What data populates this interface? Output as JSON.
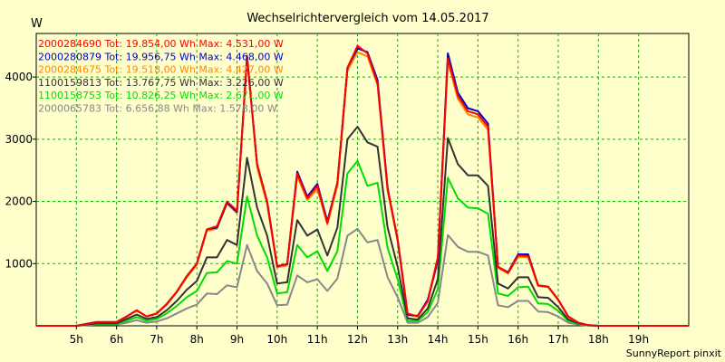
{
  "chart_data": {
    "type": "line",
    "title": "Wechselrichtervergleich vom 14.05.2017",
    "ylabel": "W",
    "ylim": [
      0,
      4700
    ],
    "xlim": [
      4.0,
      20.25
    ],
    "grid": true,
    "legend_placement": "top-left",
    "x_ticks": [
      5,
      6,
      7,
      8,
      9,
      10,
      11,
      12,
      13,
      14,
      15,
      16,
      17,
      18,
      19
    ],
    "x_tick_labels": [
      "5h",
      "6h",
      "7h",
      "8h",
      "9h",
      "10h",
      "11h",
      "12h",
      "13h",
      "14h",
      "15h",
      "16h",
      "17h",
      "18h",
      "19h"
    ],
    "y_ticks": [
      1000,
      2000,
      3000,
      4000
    ],
    "y_tick_labels": [
      "1000",
      "2000",
      "3000",
      "4000"
    ],
    "x": [
      4.0,
      4.5,
      5.0,
      5.25,
      5.5,
      5.75,
      6.0,
      6.25,
      6.5,
      6.75,
      7.0,
      7.25,
      7.5,
      7.75,
      8.0,
      8.25,
      8.5,
      8.75,
      9.0,
      9.25,
      9.5,
      9.75,
      10.0,
      10.25,
      10.5,
      10.75,
      11.0,
      11.25,
      11.5,
      11.75,
      12.0,
      12.25,
      12.5,
      12.75,
      13.0,
      13.25,
      13.5,
      13.75,
      14.0,
      14.25,
      14.5,
      14.75,
      15.0,
      15.25,
      15.5,
      15.75,
      16.0,
      16.25,
      16.5,
      16.75,
      17.0,
      17.25,
      17.5,
      17.75,
      18.0,
      18.25,
      18.5,
      18.75,
      19.0,
      19.5,
      20.25
    ],
    "series": [
      {
        "name": "2000284690",
        "legend": "2000284690 Tot: 19.854,00 Wh Max: 4.531,00 W",
        "color": "#ff0000",
        "values": [
          0,
          0,
          0,
          30,
          60,
          60,
          60,
          150,
          250,
          150,
          200,
          350,
          550,
          800,
          1000,
          1550,
          1600,
          2000,
          1850,
          4300,
          2600,
          2000,
          950,
          1000,
          2450,
          2050,
          2250,
          1650,
          2300,
          4150,
          4500,
          4380,
          3900,
          2200,
          1400,
          200,
          150,
          400,
          1100,
          4300,
          3700,
          3450,
          3400,
          3200,
          950,
          850,
          1130,
          1120,
          650,
          630,
          420,
          150,
          50,
          10,
          0,
          0,
          0,
          0,
          0,
          0,
          0
        ]
      },
      {
        "name": "2000280879",
        "legend": "2000280879 Tot: 19.956,75 Wh Max: 4.468,00 W",
        "color": "#0000cc",
        "values": [
          0,
          0,
          0,
          30,
          60,
          60,
          60,
          150,
          250,
          150,
          200,
          350,
          550,
          800,
          1000,
          1550,
          1580,
          1980,
          1830,
          4330,
          2600,
          2000,
          960,
          990,
          2480,
          2080,
          2280,
          1680,
          2300,
          4150,
          4460,
          4400,
          3950,
          2220,
          1380,
          180,
          160,
          420,
          1050,
          4380,
          3750,
          3500,
          3450,
          3250,
          950,
          860,
          1150,
          1150,
          650,
          630,
          420,
          150,
          50,
          10,
          0,
          0,
          0,
          0,
          0,
          0,
          0
        ]
      },
      {
        "name": "2000284675",
        "legend": "2000284675 Tot: 19.518,00 Wh Max: 4.427,00 W",
        "color": "#ff8800",
        "values": [
          0,
          0,
          0,
          30,
          60,
          60,
          60,
          150,
          240,
          150,
          190,
          340,
          540,
          780,
          980,
          1530,
          1560,
          1960,
          1810,
          4350,
          2550,
          1950,
          940,
          970,
          2400,
          2020,
          2200,
          1630,
          2250,
          4100,
          4400,
          4330,
          3870,
          2170,
          1360,
          170,
          150,
          390,
          1040,
          4250,
          3650,
          3400,
          3350,
          3150,
          930,
          840,
          1110,
          1100,
          640,
          620,
          410,
          140,
          50,
          10,
          0,
          0,
          0,
          0,
          0,
          0,
          0
        ]
      },
      {
        "name": "1100159813",
        "legend": "1100159813 Tot: 13.767,75 Wh Max: 3.226,00 W",
        "color": "#333333",
        "values": [
          0,
          0,
          0,
          20,
          40,
          40,
          40,
          110,
          180,
          110,
          140,
          250,
          400,
          580,
          720,
          1100,
          1100,
          1380,
          1300,
          2700,
          1900,
          1450,
          680,
          700,
          1700,
          1450,
          1550,
          1130,
          1580,
          3000,
          3200,
          2950,
          2880,
          1580,
          950,
          120,
          100,
          280,
          750,
          3020,
          2600,
          2420,
          2420,
          2250,
          680,
          600,
          780,
          780,
          460,
          450,
          300,
          100,
          40,
          10,
          0,
          0,
          0,
          0,
          0,
          0,
          0
        ]
      },
      {
        "name": "1100158753",
        "legend": "1100158753 Tot: 10.826,25 Wh Max: 2.671,00 W",
        "color": "#00dd00",
        "values": [
          0,
          0,
          0,
          15,
          30,
          30,
          30,
          80,
          140,
          80,
          110,
          200,
          320,
          460,
          560,
          850,
          860,
          1040,
          1000,
          2080,
          1450,
          1100,
          520,
          540,
          1300,
          1100,
          1200,
          880,
          1200,
          2450,
          2650,
          2250,
          2300,
          1250,
          750,
          80,
          80,
          220,
          590,
          2380,
          2050,
          1900,
          1890,
          1800,
          520,
          480,
          620,
          630,
          360,
          350,
          240,
          80,
          30,
          5,
          0,
          0,
          0,
          0,
          0,
          0,
          0
        ]
      },
      {
        "name": "2000065783",
        "legend": "2000065783 Tot: 6.656,88 Wh Max: 1.578,00 W",
        "color": "#888888",
        "values": [
          0,
          0,
          0,
          10,
          20,
          20,
          20,
          50,
          90,
          50,
          70,
          120,
          200,
          280,
          340,
          520,
          510,
          650,
          620,
          1300,
          880,
          680,
          330,
          340,
          810,
          700,
          750,
          560,
          760,
          1450,
          1560,
          1340,
          1380,
          780,
          460,
          50,
          50,
          140,
          370,
          1460,
          1270,
          1190,
          1190,
          1130,
          330,
          300,
          400,
          400,
          230,
          220,
          150,
          50,
          20,
          5,
          0,
          0,
          0,
          0,
          0,
          0,
          0
        ]
      }
    ]
  },
  "footer": {
    "credit": "SunnyReport pinxit"
  }
}
